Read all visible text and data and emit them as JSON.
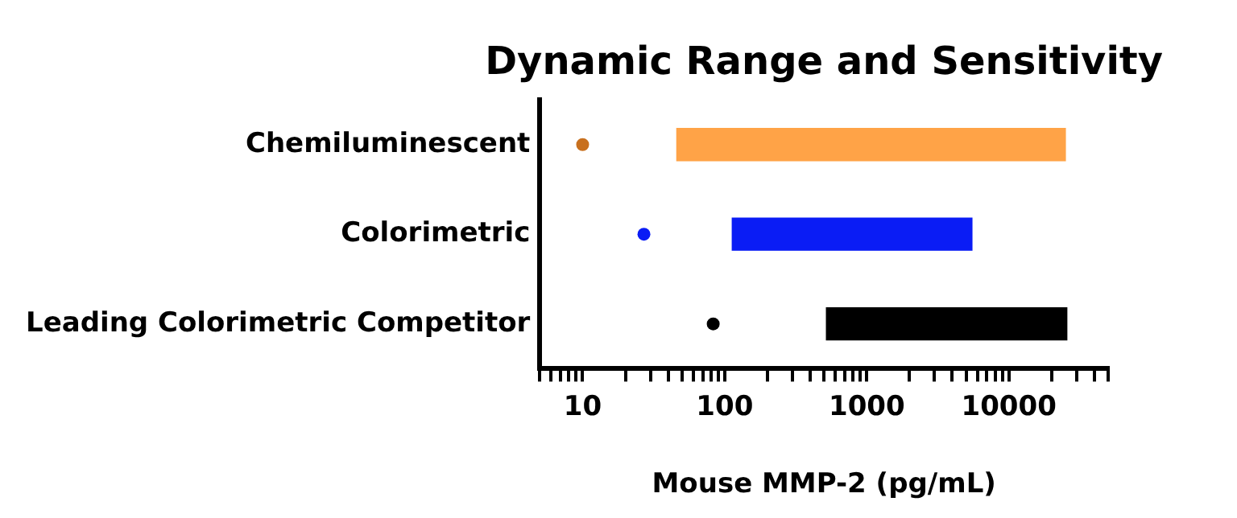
{
  "chart_data": {
    "type": "bar",
    "orientation": "horizontal",
    "title": "Dynamic Range and Sensitivity",
    "xlabel": "Mouse MMP-2 (pg/mL)",
    "categories": [
      "Chemiluminescent",
      "Colorimetric",
      "Leading Colorimetric Competitor"
    ],
    "series": [
      {
        "colors": [
          "#ffa347",
          "#0a1cf5",
          "#000000"
        ],
        "base": [
          46,
          113,
          520
        ],
        "values": [
          24954,
          5387,
          25080
        ]
      },
      {
        "type": "scatter",
        "colors": [
          "#c8701e",
          "#0a1cf5",
          "#000000"
        ],
        "values": [
          10,
          27,
          83
        ]
      }
    ],
    "log": "x",
    "xlim": [
      5,
      50000
    ],
    "xticks": [
      {
        "value": 5,
        "label": null
      },
      {
        "value": 6,
        "label": null
      },
      {
        "value": 7,
        "label": null
      },
      {
        "value": 8,
        "label": null
      },
      {
        "value": 9,
        "label": null
      },
      10,
      {
        "value": 20,
        "label": null
      },
      {
        "value": 30,
        "label": null
      },
      {
        "value": 40,
        "label": null
      },
      {
        "value": 50,
        "label": null
      },
      {
        "value": 60,
        "label": null
      },
      {
        "value": 70,
        "label": null
      },
      {
        "value": 80,
        "label": null
      },
      {
        "value": 90,
        "label": null
      },
      100,
      {
        "value": 200,
        "label": null
      },
      {
        "value": 300,
        "label": null
      },
      {
        "value": 400,
        "label": null
      },
      {
        "value": 500,
        "label": null
      },
      {
        "value": 600,
        "label": null
      },
      {
        "value": 700,
        "label": null
      },
      {
        "value": 800,
        "label": null
      },
      {
        "value": 900,
        "label": null
      },
      1000,
      {
        "value": 2000,
        "label": null
      },
      {
        "value": 3000,
        "label": null
      },
      {
        "value": 4000,
        "label": null
      },
      {
        "value": 5000,
        "label": null
      },
      {
        "value": 6000,
        "label": null
      },
      {
        "value": 7000,
        "label": null
      },
      {
        "value": 8000,
        "label": null
      },
      {
        "value": 9000,
        "label": null
      },
      10000,
      {
        "value": 20000,
        "label": null
      },
      {
        "value": 30000,
        "label": null
      },
      {
        "value": 40000,
        "label": null
      },
      {
        "value": 50000,
        "label": null
      }
    ],
    "grid": false,
    "legend": false
  }
}
